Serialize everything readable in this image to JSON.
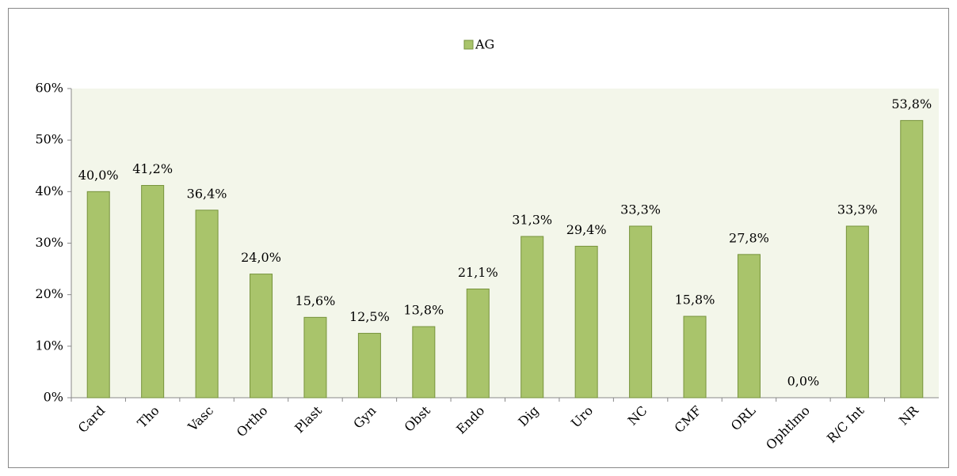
{
  "chart_data": {
    "type": "bar",
    "categories": [
      "Card",
      "Tho",
      "Vasc",
      "Ortho",
      "Plast",
      "Gyn",
      "Obst",
      "Endo",
      "Dig",
      "Uro",
      "NC",
      "CMF",
      "ORL",
      "Ophtlmo",
      "R/C Int",
      "NR"
    ],
    "series": [
      {
        "name": "AG",
        "color": "#a9c46b",
        "values": [
          40.0,
          41.2,
          36.4,
          24.0,
          15.6,
          12.5,
          13.8,
          21.1,
          31.3,
          29.4,
          33.3,
          15.8,
          27.8,
          0.0,
          33.3,
          53.8
        ],
        "value_labels": [
          "40,0%",
          "41,2%",
          "36,4%",
          "24,0%",
          "15,6%",
          "12,5%",
          "13,8%",
          "21,1%",
          "31,3%",
          "29,4%",
          "33,3%",
          "15,8%",
          "27,8%",
          "0,0%",
          "33,3%",
          "53,8%"
        ]
      }
    ],
    "ylim": [
      0,
      60
    ],
    "yticks": [
      {
        "value": 0,
        "label": "0%"
      },
      {
        "value": 10,
        "label": "10%"
      },
      {
        "value": 20,
        "label": "20%"
      },
      {
        "value": 30,
        "label": "30%"
      },
      {
        "value": 40,
        "label": "40%"
      },
      {
        "value": 50,
        "label": "50%"
      },
      {
        "value": 60,
        "label": "60%"
      }
    ],
    "legend": "top"
  }
}
